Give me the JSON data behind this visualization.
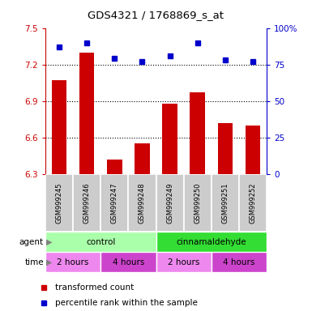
{
  "title": "GDS4321 / 1768869_s_at",
  "samples": [
    "GSM999245",
    "GSM999246",
    "GSM999247",
    "GSM999248",
    "GSM999249",
    "GSM999250",
    "GSM999251",
    "GSM999252"
  ],
  "red_values": [
    7.07,
    7.3,
    6.42,
    6.55,
    6.88,
    6.97,
    6.72,
    6.7
  ],
  "blue_values": [
    87,
    90,
    79,
    77,
    81,
    90,
    78,
    77
  ],
  "ylim_left": [
    6.3,
    7.5
  ],
  "ylim_right": [
    0,
    100
  ],
  "yticks_left": [
    6.3,
    6.6,
    6.9,
    7.2,
    7.5
  ],
  "yticks_right": [
    0,
    25,
    50,
    75,
    100
  ],
  "ytick_right_labels": [
    "0",
    "25",
    "50",
    "75",
    "100%"
  ],
  "agent_labels": [
    {
      "label": "control",
      "start": 0,
      "end": 4,
      "color": "#aaffaa"
    },
    {
      "label": "cinnamaldehyde",
      "start": 4,
      "end": 8,
      "color": "#33dd33"
    }
  ],
  "time_labels": [
    {
      "label": "2 hours",
      "start": 0,
      "end": 2,
      "color": "#ee88ee"
    },
    {
      "label": "4 hours",
      "start": 2,
      "end": 4,
      "color": "#cc44cc"
    },
    {
      "label": "2 hours",
      "start": 4,
      "end": 6,
      "color": "#ee88ee"
    },
    {
      "label": "4 hours",
      "start": 6,
      "end": 8,
      "color": "#cc44cc"
    }
  ],
  "bar_color": "#cc0000",
  "dot_color": "#0000cc",
  "left_axis_color": "#cc0000",
  "right_axis_color": "#0000cc",
  "sample_bg": "#cccccc",
  "grid_dotted_vals": [
    6.6,
    6.9,
    7.2
  ]
}
